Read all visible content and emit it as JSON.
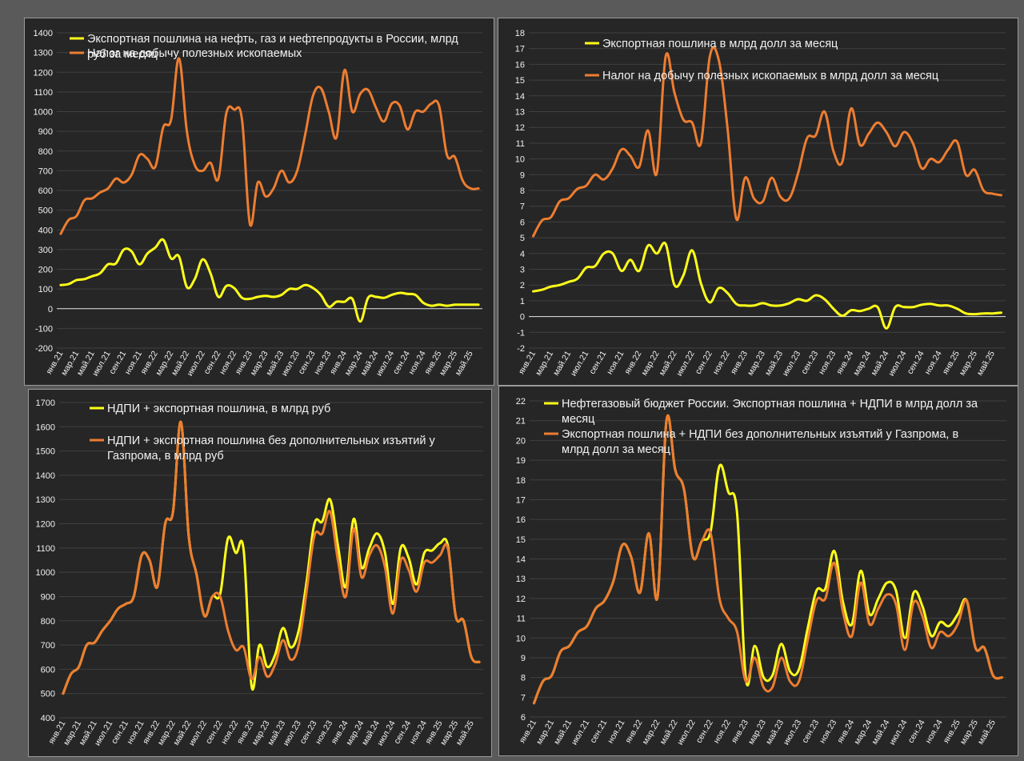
{
  "colors": {
    "yellow": "#ffff1a",
    "orange": "#ed7d31",
    "background": "#262626",
    "page": "#5a5a5a"
  },
  "x_labels": [
    "янв.21",
    "мар.21",
    "май.21",
    "июл.21",
    "сен.21",
    "ноя.21",
    "янв.22",
    "мар.22",
    "май.22",
    "июл.22",
    "сен.22",
    "ноя.22",
    "янв.23",
    "мар.23",
    "май.23",
    "июл.23",
    "сен.23",
    "ноя.23",
    "янв.24",
    "мар.24",
    "май.24",
    "июл.24",
    "сен.24",
    "ноя.24",
    "янв.25",
    "мар.25",
    "май.25"
  ],
  "chart_data": [
    {
      "type": "line",
      "ylim": [
        -200,
        1400
      ],
      "ystep": 100,
      "x": [
        "2021-01",
        "2021-02",
        "2021-03",
        "2021-04",
        "2021-05",
        "2021-06",
        "2021-07",
        "2021-08",
        "2021-09",
        "2021-10",
        "2021-11",
        "2021-12",
        "2022-01",
        "2022-02",
        "2022-03",
        "2022-04",
        "2022-05",
        "2022-06",
        "2022-07",
        "2022-08",
        "2022-09",
        "2022-10",
        "2022-11",
        "2022-12",
        "2023-01",
        "2023-02",
        "2023-03",
        "2023-04",
        "2023-05",
        "2023-06",
        "2023-07",
        "2023-08",
        "2023-09",
        "2023-10",
        "2023-11",
        "2023-12",
        "2024-01",
        "2024-02",
        "2024-03",
        "2024-04",
        "2024-05",
        "2024-06",
        "2024-07",
        "2024-08",
        "2024-09",
        "2024-10",
        "2024-11",
        "2024-12",
        "2025-01",
        "2025-02",
        "2025-03",
        "2025-04",
        "2025-05",
        "2025-06"
      ],
      "legend": [
        {
          "name": "Экспортная пошлина на нефть, газ и нефтепродукты в России, млрд",
          "name2": "руб за месяц",
          "color": "#ffff1a"
        },
        {
          "name": "Налог на добычу полезных ископаемых",
          "name2": "",
          "color": "#ed7d31"
        }
      ],
      "series": [
        {
          "name": "Экспортная пошлина на нефть, газ и нефтепродукты в России, млрд руб за месяц",
          "color": "#ffff1a",
          "values": [
            120,
            125,
            145,
            150,
            165,
            180,
            225,
            230,
            300,
            290,
            225,
            280,
            310,
            350,
            255,
            265,
            110,
            150,
            250,
            180,
            60,
            115,
            105,
            55,
            50,
            60,
            65,
            60,
            70,
            100,
            100,
            120,
            105,
            70,
            10,
            35,
            35,
            50,
            -65,
            55,
            60,
            55,
            70,
            80,
            75,
            70,
            30,
            15,
            20,
            15,
            20,
            20,
            20,
            20
          ]
        },
        {
          "name": "Налог на добычу полезных ископаемых",
          "color": "#ed7d31",
          "values": [
            380,
            450,
            470,
            550,
            560,
            590,
            610,
            660,
            640,
            680,
            780,
            760,
            720,
            920,
            960,
            1270,
            900,
            730,
            700,
            740,
            660,
            990,
            1010,
            960,
            430,
            640,
            570,
            610,
            700,
            640,
            700,
            880,
            1080,
            1120,
            1000,
            870,
            1210,
            1000,
            1090,
            1110,
            1020,
            950,
            1040,
            1030,
            910,
            1000,
            1000,
            1040,
            1030,
            780,
            770,
            650,
            610,
            610
          ]
        }
      ]
    },
    {
      "type": "line",
      "ylim": [
        -2,
        18
      ],
      "ystep": 1,
      "legend": [
        {
          "name": "Экспортная пошлина в млрд долл за месяц",
          "name2": "",
          "color": "#ffff1a"
        },
        {
          "name": "Налог на добычу полезных ископаемых в млрд долл за месяц",
          "name2": "",
          "color": "#ed7d31"
        }
      ],
      "series": [
        {
          "name": "Экспортная пошлина в млрд долл за месяц",
          "color": "#ffff1a",
          "values": [
            1.6,
            1.7,
            1.9,
            2.0,
            2.2,
            2.4,
            3.1,
            3.2,
            4.0,
            4.0,
            2.9,
            3.6,
            2.9,
            4.5,
            4.0,
            4.6,
            2.0,
            2.6,
            4.2,
            2.1,
            0.9,
            1.8,
            1.5,
            0.8,
            0.7,
            0.7,
            0.85,
            0.7,
            0.7,
            0.85,
            1.1,
            1.0,
            1.35,
            1.1,
            0.5,
            0.05,
            0.4,
            0.35,
            0.5,
            0.6,
            -0.75,
            0.6,
            0.6,
            0.6,
            0.75,
            0.8,
            0.7,
            0.7,
            0.5,
            0.2,
            0.15,
            0.2,
            0.2,
            0.25
          ]
        },
        {
          "name": "Налог на добычу полезных ископаемых в млрд долл за месяц",
          "color": "#ed7d31",
          "values": [
            5.1,
            6.1,
            6.3,
            7.3,
            7.5,
            8.1,
            8.3,
            9.0,
            8.7,
            9.4,
            10.6,
            10.2,
            9.5,
            11.8,
            9.1,
            16.5,
            14.2,
            12.5,
            12.3,
            11.0,
            16.5,
            16.3,
            12.0,
            6.2,
            8.8,
            7.5,
            7.3,
            8.8,
            7.6,
            7.5,
            9.1,
            11.3,
            11.5,
            13.0,
            10.5,
            9.8,
            13.2,
            10.9,
            11.6,
            12.3,
            11.7,
            10.8,
            11.7,
            11.0,
            9.4,
            10.0,
            9.8,
            10.6,
            11.1,
            9.0,
            9.3,
            8.0,
            7.8,
            7.7
          ]
        }
      ]
    },
    {
      "type": "line",
      "ylim": [
        400,
        1700
      ],
      "ystep": 100,
      "legend": [
        {
          "name": "НДПИ + экспортная пошлина, в млрд руб",
          "name2": "",
          "color": "#ffff1a"
        },
        {
          "name": "НДПИ + экспортная пошлина без дополнительных изъятий у",
          "name2": "Газпрома, в млрд руб",
          "color": "#ed7d31"
        }
      ],
      "series": [
        {
          "name": "НДПИ + экспортная пошлина, в млрд руб",
          "color": "#ffff1a",
          "values": [
            500,
            580,
            610,
            700,
            710,
            760,
            800,
            850,
            870,
            900,
            1070,
            1050,
            940,
            1200,
            1250,
            1620,
            1150,
            990,
            820,
            900,
            910,
            1140,
            1080,
            1090,
            530,
            700,
            610,
            660,
            770,
            690,
            760,
            960,
            1200,
            1210,
            1300,
            1110,
            940,
            1220,
            1020,
            1100,
            1160,
            1080,
            870,
            1100,
            1060,
            950,
            1080,
            1090,
            1120,
            1110,
            820,
            800,
            650,
            630
          ]
        },
        {
          "name": "НДПИ + экспортная пошлина без дополнительных изъятий у Газпрома, в млрд руб",
          "color": "#ed7d31",
          "values": [
            500,
            580,
            610,
            700,
            710,
            760,
            800,
            850,
            870,
            900,
            1070,
            1050,
            940,
            1200,
            1250,
            1620,
            1150,
            990,
            820,
            900,
            900,
            760,
            680,
            690,
            560,
            650,
            570,
            620,
            720,
            640,
            700,
            920,
            1150,
            1160,
            1250,
            1050,
            900,
            1180,
            980,
            1070,
            1110,
            1020,
            830,
            1050,
            1010,
            920,
            1040,
            1040,
            1070,
            1100,
            820,
            800,
            650,
            630
          ]
        }
      ]
    },
    {
      "type": "line",
      "ylim": [
        6,
        22
      ],
      "ystep": 1,
      "legend": [
        {
          "name": "Нефтегазовый бюджет России. Экспортная пошлина + НДПИ в млрд долл за",
          "name2": "месяц",
          "color": "#ffff1a"
        },
        {
          "name": "Экспортная пошлина + НДПИ без дополнительных изъятий у Газпрома, в",
          "name2": "млрд долл за месяц",
          "color": "#ed7d31"
        }
      ],
      "series": [
        {
          "name": "Нефтегазовый бюджет России. Экспортная пошлина + НДПИ в млрд долл за месяц",
          "color": "#ffff1a",
          "values": [
            6.7,
            7.8,
            8.1,
            9.3,
            9.6,
            10.3,
            10.6,
            11.5,
            11.9,
            12.9,
            14.7,
            14.1,
            12.3,
            15.3,
            12.1,
            21.0,
            18.5,
            17.5,
            14.1,
            14.9,
            15.4,
            18.7,
            17.4,
            16.3,
            7.9,
            9.6,
            8.0,
            8.1,
            9.7,
            8.3,
            8.4,
            10.5,
            12.4,
            12.5,
            14.4,
            11.8,
            10.7,
            13.4,
            11.2,
            12.0,
            12.8,
            12.4,
            10.0,
            12.3,
            11.6,
            10.1,
            10.8,
            10.6,
            11.2,
            11.9,
            9.5,
            9.5,
            8.1,
            8.0
          ]
        },
        {
          "name": "Экспортная пошлина + НДПИ без дополнительных изъятий у Газпрома, в млрд долл за месяц",
          "color": "#ed7d31",
          "values": [
            6.7,
            7.8,
            8.1,
            9.3,
            9.6,
            10.3,
            10.6,
            11.5,
            11.9,
            12.9,
            14.7,
            14.1,
            12.3,
            15.3,
            12.1,
            21.0,
            18.5,
            17.5,
            14.1,
            14.9,
            15.3,
            12.0,
            11.0,
            10.3,
            7.8,
            9.0,
            7.5,
            7.5,
            9.0,
            7.8,
            7.8,
            9.9,
            11.9,
            12.0,
            13.8,
            11.3,
            10.1,
            12.8,
            10.7,
            11.5,
            12.2,
            11.7,
            9.4,
            11.8,
            11.1,
            9.5,
            10.3,
            10.1,
            10.7,
            11.9,
            9.5,
            9.5,
            8.1,
            8.0
          ]
        }
      ]
    }
  ]
}
